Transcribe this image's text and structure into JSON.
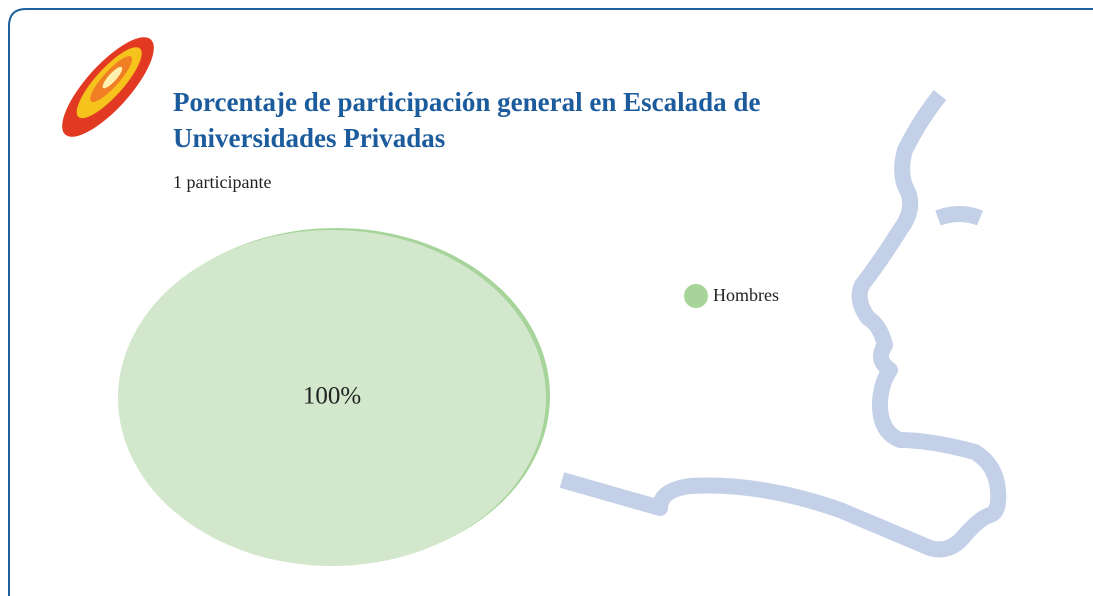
{
  "chart_data": {
    "type": "pie",
    "title": "Porcentaje de participación general en Escalada de Universidades Privadas",
    "subtitle": "1 participante",
    "categories": [
      "Hombres"
    ],
    "values": [
      100
    ],
    "value_labels": [
      "100%"
    ],
    "colors": [
      "#a6d49a"
    ]
  }
}
